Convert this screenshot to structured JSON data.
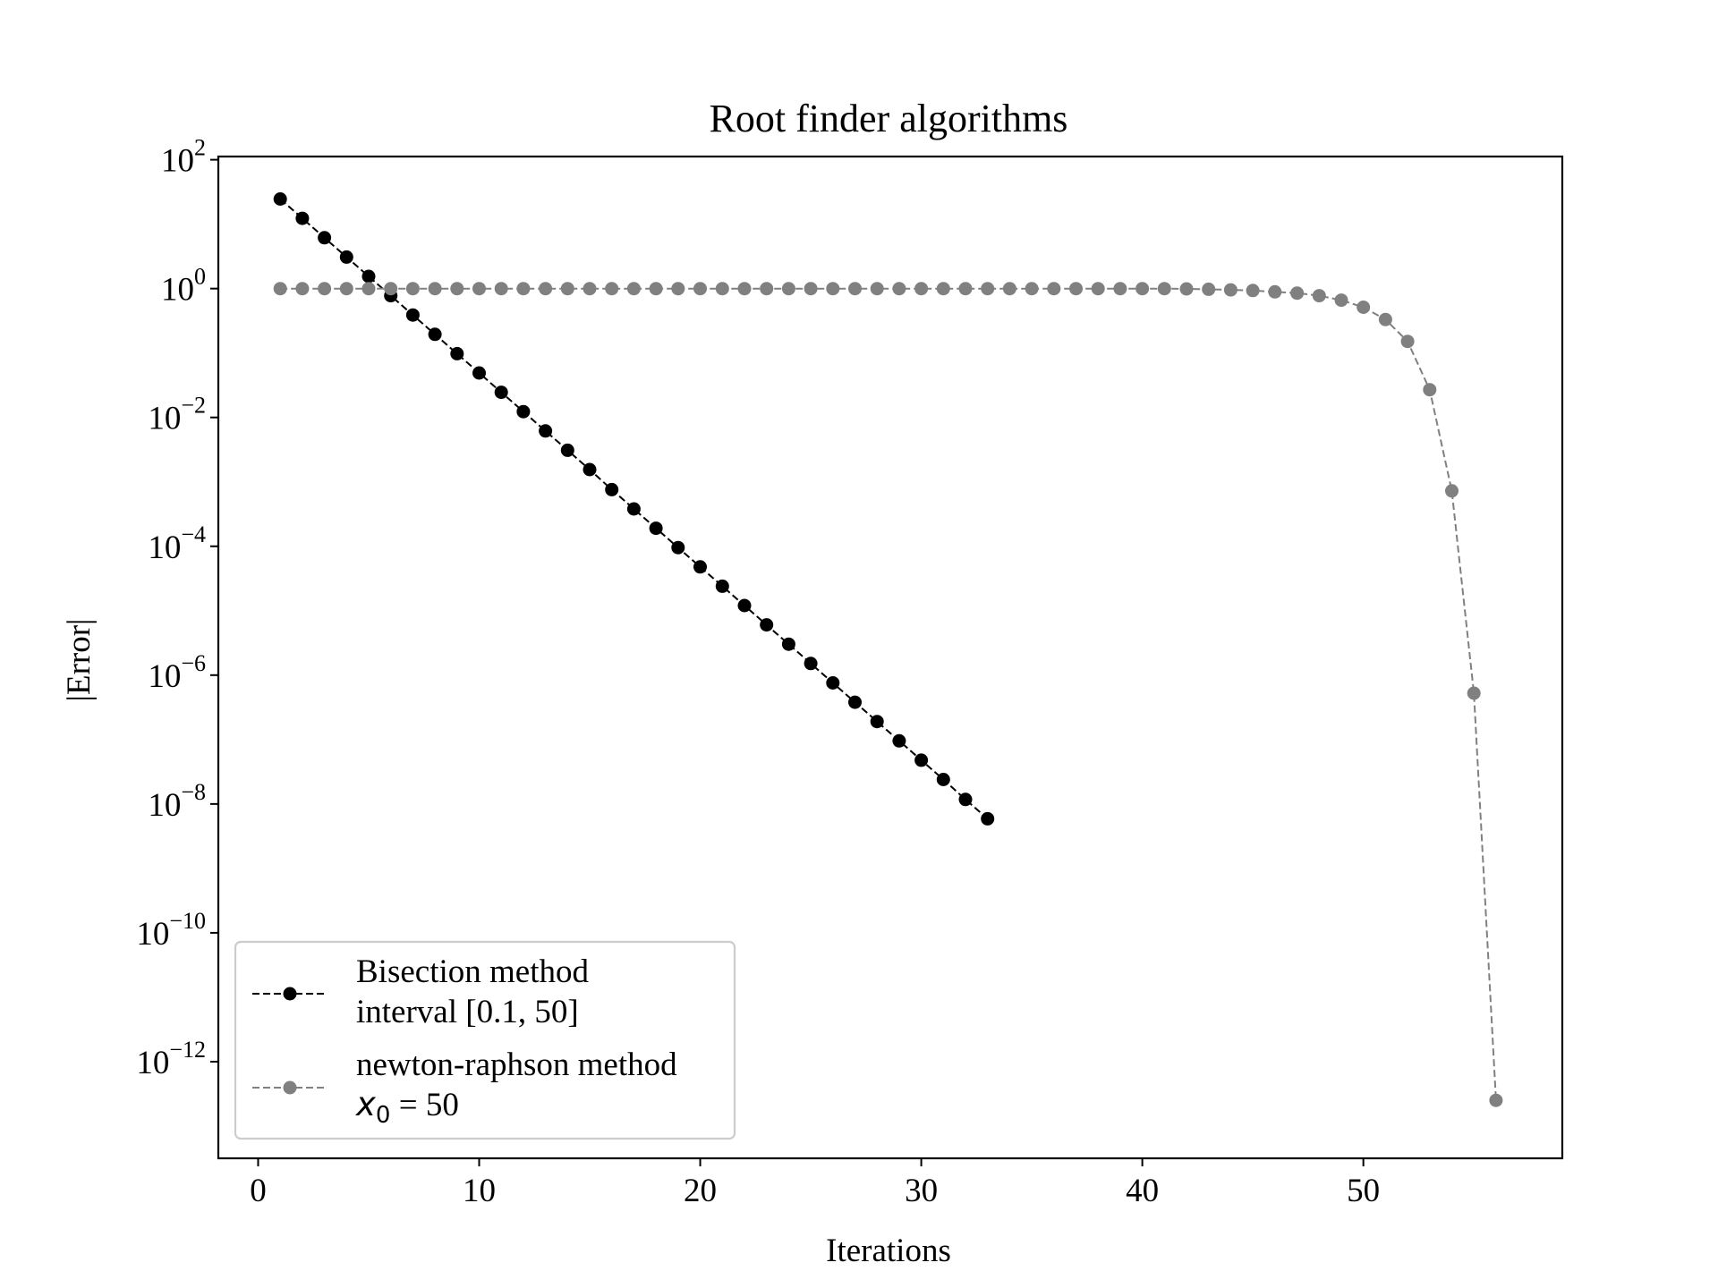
{
  "chart_data": {
    "type": "line",
    "title": "Root finder algorithms",
    "xlabel": "Iterations",
    "ylabel": "|Error|",
    "xlim": [
      -1.8,
      59
    ],
    "ylim_log10": [
      -13.5,
      2.05
    ],
    "yscale": "log",
    "grid": false,
    "legend_position": "lower-left",
    "x_ticks": [
      0,
      10,
      20,
      30,
      40,
      50
    ],
    "y_ticks": [
      {
        "base": "10",
        "exp": "2",
        "log10": 2
      },
      {
        "base": "10",
        "exp": "0",
        "log10": 0
      },
      {
        "base": "10",
        "exp": "−2",
        "log10": -2
      },
      {
        "base": "10",
        "exp": "−4",
        "log10": -4
      },
      {
        "base": "10",
        "exp": "−6",
        "log10": -6
      },
      {
        "base": "10",
        "exp": "−8",
        "log10": -8
      },
      {
        "base": "10",
        "exp": "−10",
        "log10": -10
      },
      {
        "base": "10",
        "exp": "−12",
        "log10": -12
      }
    ],
    "series": [
      {
        "name_line1": "Bisection method",
        "name_line2": "interval [0.1, 50]",
        "color": "#000000",
        "linestyle": "dashed",
        "marker": "circle",
        "x": [
          1,
          2,
          3,
          4,
          5,
          6,
          7,
          8,
          9,
          10,
          11,
          12,
          13,
          14,
          15,
          16,
          17,
          18,
          19,
          20,
          21,
          22,
          23,
          24,
          25,
          26,
          27,
          28,
          29,
          30,
          31,
          32,
          33
        ],
        "y_log10": [
          1.39,
          1.09,
          0.79,
          0.49,
          0.19,
          -0.11,
          -0.41,
          -0.71,
          -1.01,
          -1.31,
          -1.61,
          -1.91,
          -2.21,
          -2.51,
          -2.81,
          -3.12,
          -3.42,
          -3.72,
          -4.02,
          -4.32,
          -4.62,
          -4.92,
          -5.22,
          -5.52,
          -5.82,
          -6.12,
          -6.42,
          -6.72,
          -7.02,
          -7.32,
          -7.62,
          -7.93,
          -8.23
        ]
      },
      {
        "name_line1": "newton-raphson method",
        "name_line2_var": "x",
        "name_line2_sub": "0",
        "name_line2_rest": " = 50",
        "color": "#808080",
        "linestyle": "dashed",
        "marker": "circle",
        "x": [
          1,
          2,
          3,
          4,
          5,
          6,
          7,
          8,
          9,
          10,
          11,
          12,
          13,
          14,
          15,
          16,
          17,
          18,
          19,
          20,
          21,
          22,
          23,
          24,
          25,
          26,
          27,
          28,
          29,
          30,
          31,
          32,
          33,
          34,
          35,
          36,
          37,
          38,
          39,
          40,
          41,
          42,
          43,
          44,
          45,
          46,
          47,
          48,
          49,
          50,
          51,
          52,
          53,
          54,
          55,
          56
        ],
        "y_log10": [
          0,
          0,
          0,
          0,
          0,
          0,
          0,
          0,
          0,
          0,
          0,
          0,
          0,
          0,
          0,
          0,
          0,
          0,
          0,
          0,
          0,
          0,
          0,
          0,
          0,
          0,
          0,
          0,
          0,
          0,
          0,
          0,
          0,
          0,
          0,
          0,
          0,
          0,
          0,
          0,
          0,
          -0.005,
          -0.01,
          -0.02,
          -0.03,
          -0.05,
          -0.07,
          -0.11,
          -0.18,
          -0.29,
          -0.48,
          -0.82,
          -1.57,
          -3.14,
          -6.28,
          -12.6
        ]
      }
    ]
  }
}
